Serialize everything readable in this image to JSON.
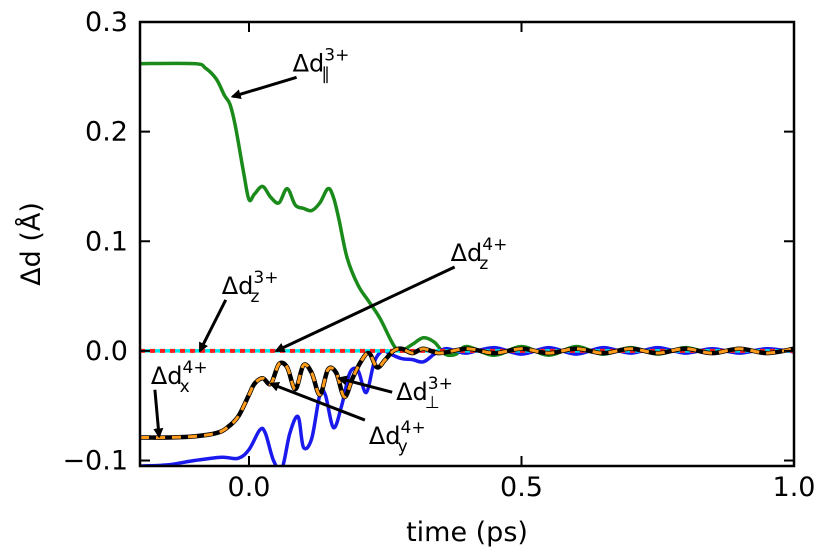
{
  "chart_data": {
    "type": "line",
    "title": "",
    "xlabel": "time (ps)",
    "ylabel": "Δd (Å)",
    "xlim": [
      -0.2,
      1.0
    ],
    "ylim": [
      -0.105,
      0.3
    ],
    "xticks": [
      0.0,
      0.5,
      1.0
    ],
    "xtick_labels": [
      "0.0",
      "0.5",
      "1.0"
    ],
    "yticks": [
      -0.1,
      0.0,
      0.1,
      0.2,
      0.3
    ],
    "ytick_labels": [
      "−0.1",
      "0.0",
      "0.1",
      "0.2",
      "0.3"
    ],
    "grid": false,
    "series": [
      {
        "name": "Δd∥3+",
        "color": "#1a8a1a",
        "style": "solid",
        "x": [
          -0.2,
          -0.1,
          -0.08,
          -0.06,
          -0.045,
          -0.035,
          -0.025,
          -0.01,
          0.0,
          0.01,
          0.025,
          0.04,
          0.055,
          0.07,
          0.085,
          0.1,
          0.115,
          0.13,
          0.145,
          0.155,
          0.165,
          0.18,
          0.2,
          0.22,
          0.24,
          0.26,
          0.27,
          0.28,
          0.3,
          0.32,
          0.34,
          0.36,
          0.38,
          0.4,
          0.45,
          0.5,
          0.55,
          0.6,
          0.65,
          0.7,
          0.75,
          0.8,
          0.85,
          0.9,
          0.95,
          1.0
        ],
        "y": [
          0.262,
          0.262,
          0.258,
          0.248,
          0.233,
          0.225,
          0.205,
          0.163,
          0.138,
          0.143,
          0.15,
          0.14,
          0.135,
          0.148,
          0.133,
          0.13,
          0.128,
          0.135,
          0.148,
          0.14,
          0.12,
          0.085,
          0.06,
          0.045,
          0.03,
          0.01,
          0.002,
          0.0,
          0.006,
          0.012,
          0.008,
          -0.003,
          -0.003,
          0.004,
          -0.004,
          0.004,
          -0.004,
          0.004,
          -0.003,
          0.003,
          -0.003,
          0.003,
          -0.002,
          0.002,
          -0.002,
          0.002
        ]
      },
      {
        "name": "Δd⊥3+",
        "color": "#1a1aee",
        "style": "solid",
        "x": [
          -0.2,
          -0.15,
          -0.1,
          -0.05,
          -0.02,
          0.0,
          0.02,
          0.03,
          0.045,
          0.06,
          0.075,
          0.09,
          0.1,
          0.115,
          0.13,
          0.14,
          0.155,
          0.17,
          0.185,
          0.2,
          0.215,
          0.23,
          0.245,
          0.26,
          0.28,
          0.3,
          0.32,
          0.34,
          0.36,
          0.38,
          0.4,
          0.45,
          0.5,
          0.55,
          0.6,
          0.65,
          0.7,
          0.75,
          0.8,
          0.85,
          0.9,
          0.95,
          1.0
        ],
        "y": [
          -0.105,
          -0.104,
          -0.1,
          -0.097,
          -0.098,
          -0.09,
          -0.072,
          -0.075,
          -0.1,
          -0.108,
          -0.075,
          -0.06,
          -0.088,
          -0.08,
          -0.04,
          -0.04,
          -0.07,
          -0.05,
          -0.02,
          -0.018,
          -0.038,
          -0.01,
          0.0,
          -0.003,
          -0.007,
          -0.008,
          -0.01,
          -0.003,
          0.002,
          0.0,
          -0.002,
          0.003,
          -0.003,
          0.003,
          -0.003,
          0.003,
          -0.002,
          0.003,
          -0.002,
          0.002,
          -0.002,
          0.002,
          -0.001
        ]
      },
      {
        "name": "Δdz3+",
        "color": "#ff1a1a",
        "style": "dotted",
        "x": [
          -0.2,
          1.0
        ],
        "y": [
          0.0,
          0.0
        ]
      },
      {
        "name": "Δdz4+",
        "color": "#00e5e5",
        "style": "solid",
        "x": [
          -0.2,
          1.0
        ],
        "y": [
          0.0,
          0.0
        ]
      },
      {
        "name": "Δdx4+",
        "color": "#000000",
        "style": "solid-under",
        "x": [
          -0.2,
          -0.15,
          -0.1,
          -0.06,
          -0.04,
          -0.02,
          0.0,
          0.01,
          0.025,
          0.04,
          0.055,
          0.07,
          0.085,
          0.1,
          0.115,
          0.13,
          0.145,
          0.16,
          0.175,
          0.19,
          0.205,
          0.22,
          0.235,
          0.25,
          0.265,
          0.28,
          0.3,
          0.32,
          0.35,
          0.4,
          0.45,
          0.5,
          0.55,
          0.6,
          0.65,
          0.7,
          0.75,
          0.8,
          0.85,
          0.9,
          0.95,
          1.0
        ],
        "y": [
          -0.079,
          -0.079,
          -0.078,
          -0.075,
          -0.07,
          -0.06,
          -0.04,
          -0.03,
          -0.025,
          -0.03,
          -0.012,
          -0.015,
          -0.035,
          -0.013,
          -0.02,
          -0.04,
          -0.017,
          -0.02,
          -0.042,
          -0.025,
          -0.01,
          -0.002,
          -0.015,
          -0.008,
          0.0,
          0.002,
          -0.002,
          0.002,
          -0.002,
          0.002,
          -0.002,
          0.002,
          -0.002,
          0.002,
          -0.002,
          0.002,
          -0.002,
          0.002,
          -0.002,
          0.002,
          -0.002,
          0.002
        ]
      },
      {
        "name": "Δdy4+",
        "color": "#ff9a1a",
        "style": "dashed-over",
        "x": [
          -0.2,
          -0.15,
          -0.1,
          -0.06,
          -0.04,
          -0.02,
          0.0,
          0.01,
          0.025,
          0.04,
          0.055,
          0.07,
          0.085,
          0.1,
          0.115,
          0.13,
          0.145,
          0.16,
          0.175,
          0.19,
          0.205,
          0.22,
          0.235,
          0.25,
          0.265,
          0.28,
          0.3,
          0.32,
          0.35,
          0.4,
          0.45,
          0.5,
          0.55,
          0.6,
          0.65,
          0.7,
          0.75,
          0.8,
          0.85,
          0.9,
          0.95,
          1.0
        ],
        "y": [
          -0.079,
          -0.079,
          -0.078,
          -0.075,
          -0.07,
          -0.06,
          -0.04,
          -0.03,
          -0.025,
          -0.03,
          -0.012,
          -0.015,
          -0.035,
          -0.013,
          -0.02,
          -0.04,
          -0.017,
          -0.02,
          -0.042,
          -0.025,
          -0.01,
          -0.002,
          -0.015,
          -0.008,
          0.0,
          0.002,
          -0.002,
          0.002,
          -0.002,
          0.002,
          -0.002,
          0.002,
          -0.002,
          0.002,
          -0.002,
          0.002,
          -0.002,
          0.002,
          -0.002,
          0.002,
          -0.002,
          0.002
        ]
      }
    ],
    "annotations": [
      {
        "id": "par3",
        "base": "Δd",
        "sup": "3+",
        "sub": "∥",
        "text_at": [
          0.08,
          0.255
        ],
        "arrow_to": [
          -0.03,
          0.232
        ]
      },
      {
        "id": "z3",
        "base": "Δd",
        "sup": "3+",
        "sub": "z",
        "text_at": [
          -0.05,
          0.052
        ],
        "arrow_to": [
          -0.09,
          0.0
        ]
      },
      {
        "id": "z4",
        "base": "Δd",
        "sup": "4+",
        "sub": "z",
        "text_at": [
          0.37,
          0.082
        ],
        "arrow_to": [
          0.05,
          0.0
        ]
      },
      {
        "id": "x4",
        "base": "Δd",
        "sup": "4+",
        "sub": "x",
        "text_at": [
          -0.18,
          -0.03
        ],
        "arrow_to": [
          -0.165,
          -0.078
        ]
      },
      {
        "id": "perp3",
        "base": "Δd",
        "sup": "3+",
        "sub": "⊥",
        "text_at": [
          0.27,
          -0.045
        ],
        "arrow_to": [
          0.165,
          -0.025
        ]
      },
      {
        "id": "y4",
        "base": "Δd",
        "sup": "4+",
        "sub": "y",
        "text_at": [
          0.22,
          -0.085
        ],
        "arrow_to": [
          0.04,
          -0.03
        ]
      }
    ]
  }
}
